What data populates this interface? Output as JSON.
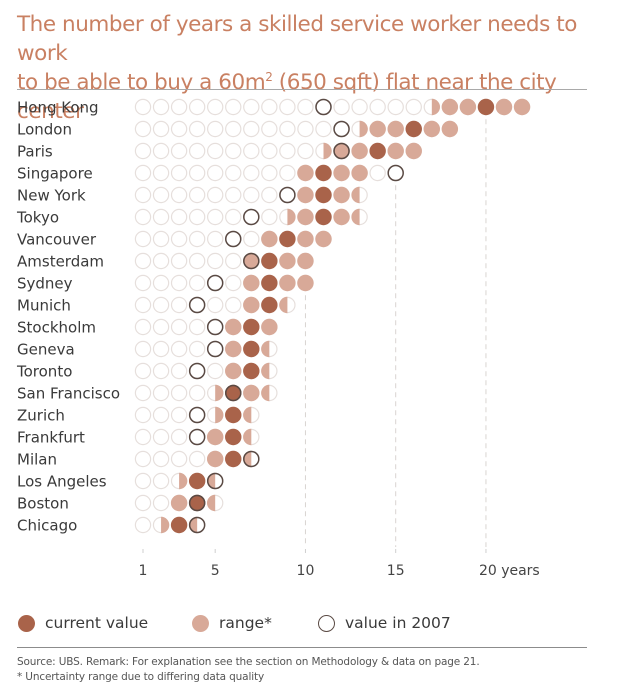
{
  "title": {
    "line1": "The number of years a skilled service worker needs to work",
    "line2_pre": "to be able to buy a 60m",
    "line2_sup": "2",
    "line2_post": " (650 sqft) flat near the city center"
  },
  "colors": {
    "title": "#c98062",
    "current": "#a9634a",
    "range": "#d8a998",
    "value_2007_stroke": "#5a4a44",
    "empty_stroke": "#e6dfdc"
  },
  "chart_data": {
    "type": "dot-range",
    "title": "The number of years a skilled service worker needs to work to be able to buy a 60m2 (650 sqft) flat near the city center",
    "xlabel": "years",
    "xlim": [
      1,
      22
    ],
    "x_ticks": [
      1,
      5,
      10,
      15,
      20
    ],
    "x_tick_labels": [
      "1",
      "5",
      "10",
      "15",
      "20 years"
    ],
    "gridlines": [
      10,
      15,
      20
    ],
    "legend_placement": "bottom",
    "legend": [
      "current value",
      "range*",
      "value in 2007"
    ],
    "series_fields": [
      "current",
      "range_low",
      "range_high",
      "value_2007"
    ],
    "cities": [
      {
        "name": "Hong Kong",
        "current": 20,
        "range_low": 16.5,
        "range_high": 22,
        "value_2007": 11
      },
      {
        "name": "London",
        "current": 16,
        "range_low": 12.5,
        "range_high": 18,
        "value_2007": 12
      },
      {
        "name": "Paris",
        "current": 14,
        "range_low": 10.5,
        "range_high": 16,
        "value_2007": 12
      },
      {
        "name": "Singapore",
        "current": 11,
        "range_low": 10,
        "range_high": 13,
        "value_2007": 15
      },
      {
        "name": "New York",
        "current": 11,
        "range_low": 10,
        "range_high": 12.5,
        "value_2007": 9
      },
      {
        "name": "Tokyo",
        "current": 11,
        "range_low": 8.5,
        "range_high": 12.5,
        "value_2007": 7
      },
      {
        "name": "Vancouver",
        "current": 9,
        "range_low": 8,
        "range_high": 11,
        "value_2007": 6
      },
      {
        "name": "Amsterdam",
        "current": 8,
        "range_low": 7,
        "range_high": 10,
        "value_2007": 7
      },
      {
        "name": "Sydney",
        "current": 8,
        "range_low": 7,
        "range_high": 10,
        "value_2007": 5
      },
      {
        "name": "Munich",
        "current": 8,
        "range_low": 7,
        "range_high": 8.5,
        "value_2007": 4
      },
      {
        "name": "Stockholm",
        "current": 7,
        "range_low": 6,
        "range_high": 8,
        "value_2007": 5
      },
      {
        "name": "Geneva",
        "current": 7,
        "range_low": 6,
        "range_high": 7.5,
        "value_2007": 5
      },
      {
        "name": "Toronto",
        "current": 7,
        "range_low": 6,
        "range_high": 7.5,
        "value_2007": 4
      },
      {
        "name": "San Francisco",
        "current": 6,
        "range_low": 4.5,
        "range_high": 7.5,
        "value_2007": 6
      },
      {
        "name": "Zurich",
        "current": 6,
        "range_low": 4.5,
        "range_high": 6.5,
        "value_2007": 4
      },
      {
        "name": "Frankfurt",
        "current": 6,
        "range_low": 5,
        "range_high": 6.5,
        "value_2007": 4
      },
      {
        "name": "Milan",
        "current": 6,
        "range_low": 5,
        "range_high": 6.5,
        "value_2007": 7
      },
      {
        "name": "Los Angeles",
        "current": 4,
        "range_low": 2.5,
        "range_high": 4.5,
        "value_2007": 5
      },
      {
        "name": "Boston",
        "current": 4,
        "range_low": 3,
        "range_high": 4.5,
        "value_2007": 4
      },
      {
        "name": "Chicago",
        "current": 3,
        "range_low": 1.5,
        "range_high": 3.5,
        "value_2007": 4
      }
    ]
  },
  "legend": {
    "current": "current value",
    "range": "range*",
    "value_2007": "value in 2007"
  },
  "footnotes": {
    "source": "Source: UBS. Remark: For explanation see the section on Methodology & data on page 21.",
    "range_note": "* Uncertainty range due to differing data quality"
  }
}
